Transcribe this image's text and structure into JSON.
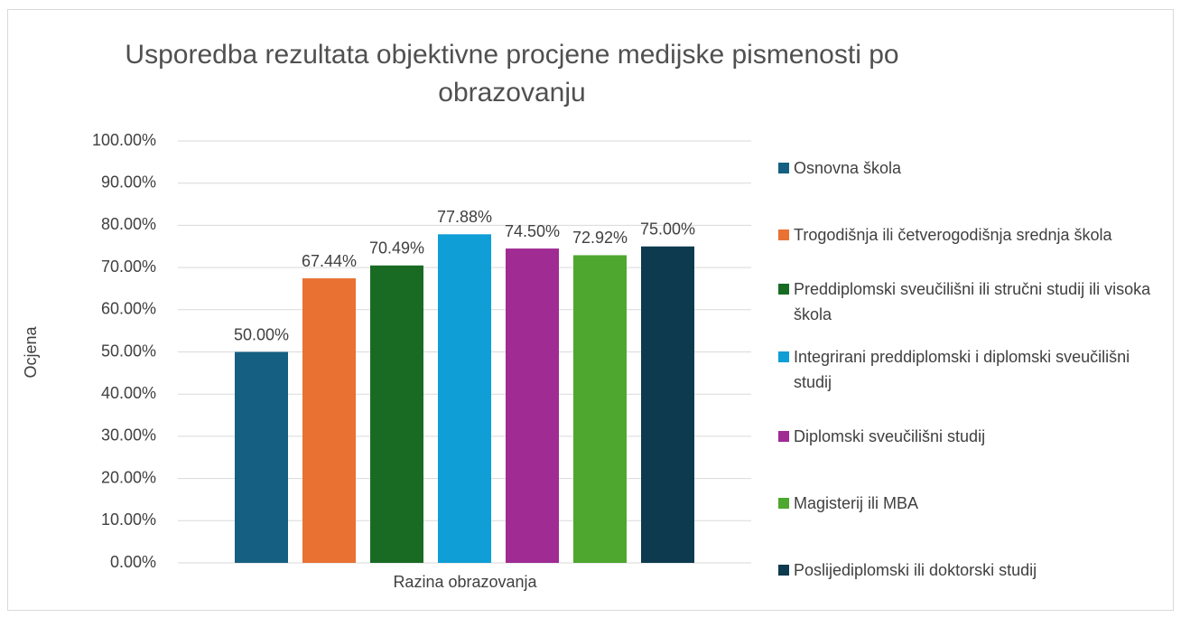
{
  "chart_data": {
    "type": "bar",
    "title": "Usporedba rezultata objektivne procjene medijske pismenosti po obrazovanju",
    "xlabel": "Razina obrazovanja",
    "ylabel": "Ocjena",
    "categories": [
      null
    ],
    "series": [
      {
        "name": "Osnovna škola",
        "color": "#156082",
        "values": [
          50
        ],
        "value_labels": [
          "50.00%"
        ]
      },
      {
        "name": "Trogodišnja ili četverogodišnja srednja škola",
        "color": "#E97132",
        "values": [
          67.44
        ],
        "value_labels": [
          "67.44%"
        ]
      },
      {
        "name": "Preddiplomski sveučilišni ili stručni studij ili visoka škola",
        "color": "#196B24",
        "values": [
          70.49
        ],
        "value_labels": [
          "70.49%"
        ]
      },
      {
        "name": "Integrirani preddiplomski i diplomski sveučilišni studij",
        "color": "#0F9ED5",
        "values": [
          77.88
        ],
        "value_labels": [
          "77.88%"
        ]
      },
      {
        "name": "Diplomski sveučilišni studij",
        "color": "#A02B93",
        "values": [
          74.5
        ],
        "value_labels": [
          "74.50%"
        ]
      },
      {
        "name": "Magisterij ili MBA",
        "color": "#4EA72E",
        "values": [
          72.92
        ],
        "value_labels": [
          "72.92%"
        ]
      },
      {
        "name": "Poslijediplomski ili doktorski studij",
        "color": "#0E3A4F",
        "values": [
          75
        ],
        "value_labels": [
          "75.00%"
        ]
      }
    ],
    "ylim": [
      0,
      100
    ],
    "yticks": [
      {
        "value": 0,
        "label": "0.00%"
      },
      {
        "value": 10,
        "label": "10.00%"
      },
      {
        "value": 20,
        "label": "20.00%"
      },
      {
        "value": 30,
        "label": "30.00%"
      },
      {
        "value": 40,
        "label": "40.00%"
      },
      {
        "value": 50,
        "label": "50.00%"
      },
      {
        "value": 60,
        "label": "60.00%"
      },
      {
        "value": 70,
        "label": "70.00%"
      },
      {
        "value": 80,
        "label": "80.00%"
      },
      {
        "value": 90,
        "label": "90.00%"
      },
      {
        "value": 100,
        "label": "100.00%"
      }
    ],
    "grid": true,
    "legend": "right"
  }
}
